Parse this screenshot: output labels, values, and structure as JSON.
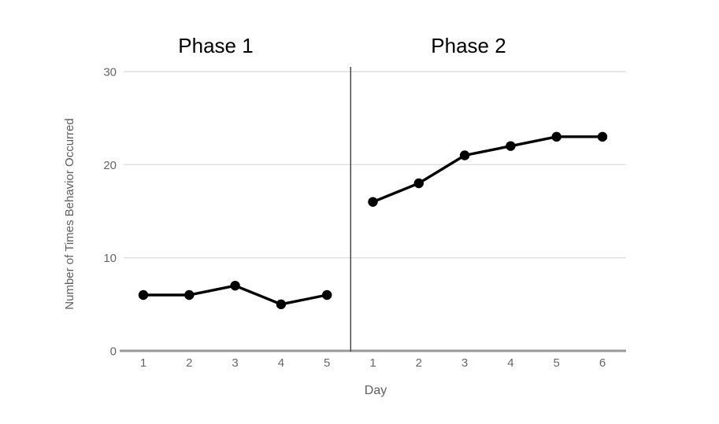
{
  "chart_data": {
    "type": "line",
    "xlabel": "Day",
    "ylabel": "Number of Times Behavior Occurred",
    "ylim": [
      0,
      30
    ],
    "yticks": [
      0,
      10,
      20,
      30
    ],
    "grid": true,
    "legend": "none",
    "phases": [
      {
        "name": "Phase 1",
        "days": [
          1,
          2,
          3,
          4,
          5
        ],
        "values": [
          6,
          6,
          7,
          5,
          6
        ]
      },
      {
        "name": "Phase 2",
        "days": [
          1,
          2,
          3,
          4,
          5,
          6
        ],
        "values": [
          16,
          18,
          21,
          22,
          23,
          23
        ]
      }
    ],
    "colors": {
      "series": "#000000",
      "gridline": "#dedede",
      "axis": "#9a9a9a",
      "separator": "#3d3d3d",
      "tick_label": "#666666",
      "title": "#000000"
    }
  }
}
